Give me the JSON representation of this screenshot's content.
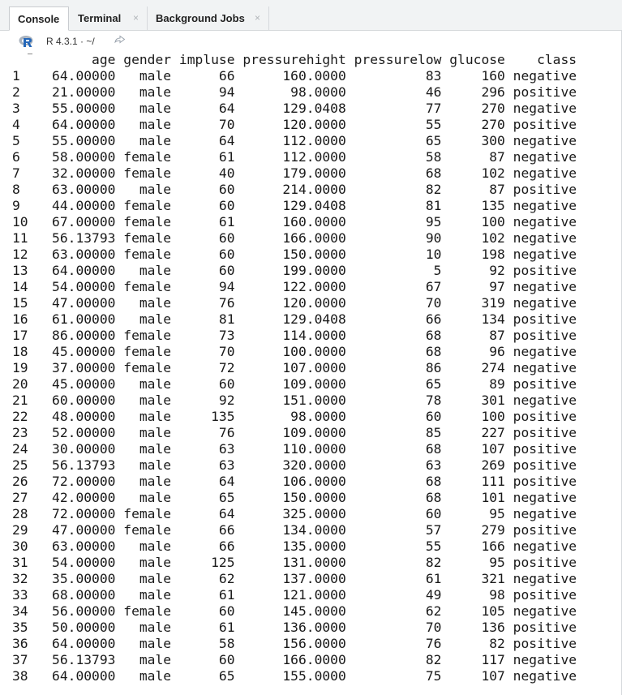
{
  "tabs": [
    {
      "label": "Console",
      "closable": false
    },
    {
      "label": "Terminal",
      "closable": true
    },
    {
      "label": "Background Jobs",
      "closable": true
    }
  ],
  "close_glyph": "×",
  "path_bar": {
    "r_version": "R 4.3.1",
    "separator": "·",
    "working_dir": "~/",
    "icons": [
      "r-logo-icon",
      "goto-directory-icon"
    ]
  },
  "table": {
    "columns": [
      "age",
      "gender",
      "impluse",
      "pressurehight",
      "pressurelow",
      "glucose",
      "class"
    ],
    "rows": [
      [
        "1",
        "64.00000",
        "male",
        "66",
        "160.0000",
        "83",
        "160",
        "negative"
      ],
      [
        "2",
        "21.00000",
        "male",
        "94",
        "98.0000",
        "46",
        "296",
        "positive"
      ],
      [
        "3",
        "55.00000",
        "male",
        "64",
        "129.0408",
        "77",
        "270",
        "negative"
      ],
      [
        "4",
        "64.00000",
        "male",
        "70",
        "120.0000",
        "55",
        "270",
        "positive"
      ],
      [
        "5",
        "55.00000",
        "male",
        "64",
        "112.0000",
        "65",
        "300",
        "negative"
      ],
      [
        "6",
        "58.00000",
        "female",
        "61",
        "112.0000",
        "58",
        "87",
        "negative"
      ],
      [
        "7",
        "32.00000",
        "female",
        "40",
        "179.0000",
        "68",
        "102",
        "negative"
      ],
      [
        "8",
        "63.00000",
        "male",
        "60",
        "214.0000",
        "82",
        "87",
        "positive"
      ],
      [
        "9",
        "44.00000",
        "female",
        "60",
        "129.0408",
        "81",
        "135",
        "negative"
      ],
      [
        "10",
        "67.00000",
        "female",
        "61",
        "160.0000",
        "95",
        "100",
        "negative"
      ],
      [
        "11",
        "56.13793",
        "female",
        "60",
        "166.0000",
        "90",
        "102",
        "negative"
      ],
      [
        "12",
        "63.00000",
        "female",
        "60",
        "150.0000",
        "10",
        "198",
        "negative"
      ],
      [
        "13",
        "64.00000",
        "male",
        "60",
        "199.0000",
        "5",
        "92",
        "positive"
      ],
      [
        "14",
        "54.00000",
        "female",
        "94",
        "122.0000",
        "67",
        "97",
        "negative"
      ],
      [
        "15",
        "47.00000",
        "male",
        "76",
        "120.0000",
        "70",
        "319",
        "negative"
      ],
      [
        "16",
        "61.00000",
        "male",
        "81",
        "129.0408",
        "66",
        "134",
        "positive"
      ],
      [
        "17",
        "86.00000",
        "female",
        "73",
        "114.0000",
        "68",
        "87",
        "positive"
      ],
      [
        "18",
        "45.00000",
        "female",
        "70",
        "100.0000",
        "68",
        "96",
        "negative"
      ],
      [
        "19",
        "37.00000",
        "female",
        "72",
        "107.0000",
        "86",
        "274",
        "negative"
      ],
      [
        "20",
        "45.00000",
        "male",
        "60",
        "109.0000",
        "65",
        "89",
        "positive"
      ],
      [
        "21",
        "60.00000",
        "male",
        "92",
        "151.0000",
        "78",
        "301",
        "negative"
      ],
      [
        "22",
        "48.00000",
        "male",
        "135",
        "98.0000",
        "60",
        "100",
        "positive"
      ],
      [
        "23",
        "52.00000",
        "male",
        "76",
        "109.0000",
        "85",
        "227",
        "positive"
      ],
      [
        "24",
        "30.00000",
        "male",
        "63",
        "110.0000",
        "68",
        "107",
        "positive"
      ],
      [
        "25",
        "56.13793",
        "male",
        "63",
        "320.0000",
        "63",
        "269",
        "positive"
      ],
      [
        "26",
        "72.00000",
        "male",
        "64",
        "106.0000",
        "68",
        "111",
        "positive"
      ],
      [
        "27",
        "42.00000",
        "male",
        "65",
        "150.0000",
        "68",
        "101",
        "negative"
      ],
      [
        "28",
        "72.00000",
        "female",
        "64",
        "325.0000",
        "60",
        "95",
        "negative"
      ],
      [
        "29",
        "47.00000",
        "female",
        "66",
        "134.0000",
        "57",
        "279",
        "positive"
      ],
      [
        "30",
        "63.00000",
        "male",
        "66",
        "135.0000",
        "55",
        "166",
        "negative"
      ],
      [
        "31",
        "54.00000",
        "male",
        "125",
        "131.0000",
        "82",
        "95",
        "positive"
      ],
      [
        "32",
        "35.00000",
        "male",
        "62",
        "137.0000",
        "61",
        "321",
        "negative"
      ],
      [
        "33",
        "68.00000",
        "male",
        "61",
        "121.0000",
        "49",
        "98",
        "positive"
      ],
      [
        "34",
        "56.00000",
        "female",
        "60",
        "145.0000",
        "62",
        "105",
        "negative"
      ],
      [
        "35",
        "50.00000",
        "male",
        "61",
        "136.0000",
        "70",
        "136",
        "positive"
      ],
      [
        "36",
        "64.00000",
        "male",
        "58",
        "156.0000",
        "76",
        "82",
        "positive"
      ],
      [
        "37",
        "56.13793",
        "male",
        "60",
        "166.0000",
        "82",
        "117",
        "negative"
      ],
      [
        "38",
        "64.00000",
        "male",
        "65",
        "155.0000",
        "75",
        "107",
        "negative"
      ]
    ]
  }
}
